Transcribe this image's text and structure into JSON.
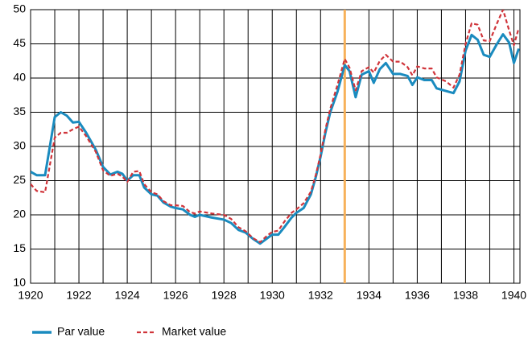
{
  "chart_data": {
    "type": "line",
    "x": [
      1920,
      1920.25,
      1920.6,
      1921,
      1921.25,
      1921.5,
      1921.75,
      1922,
      1922.3,
      1922.7,
      1923,
      1923.3,
      1923.6,
      1923.8,
      1924,
      1924.25,
      1924.5,
      1924.7,
      1925,
      1925.25,
      1925.5,
      1925.8,
      1926,
      1926.3,
      1926.6,
      1926.8,
      1927,
      1927.5,
      1928,
      1928.3,
      1928.6,
      1928.9,
      1929.2,
      1929.5,
      1929.8,
      1930,
      1930.25,
      1930.5,
      1930.8,
      1931,
      1931.3,
      1931.6,
      1931.8,
      1932,
      1932.2,
      1932.4,
      1932.7,
      1933,
      1933.2,
      1933.45,
      1933.7,
      1934,
      1934.2,
      1934.45,
      1934.7,
      1935,
      1935.3,
      1935.6,
      1935.8,
      1936,
      1936.3,
      1936.6,
      1936.8,
      1937.2,
      1937.5,
      1937.75,
      1938,
      1938.25,
      1938.5,
      1938.75,
      1939,
      1939.3,
      1939.55,
      1939.8,
      1940,
      1940.2
    ],
    "series": [
      {
        "name": "Par value",
        "color": "#1a8bbf",
        "dashed": false,
        "values": [
          26.3,
          25.8,
          25.8,
          34.3,
          35,
          34.5,
          33.5,
          33.6,
          32,
          29.5,
          27,
          25.9,
          26.3,
          26,
          25,
          25.8,
          25.8,
          24,
          23,
          22.8,
          21.8,
          21.2,
          21,
          20.8,
          20,
          19.7,
          20,
          19.6,
          19.3,
          18.8,
          17.8,
          17.4,
          16.5,
          15.8,
          16.6,
          17.1,
          17.1,
          18.2,
          19.6,
          20.3,
          21,
          23,
          25.5,
          28.5,
          32,
          35,
          38,
          41.9,
          41,
          37.2,
          40.5,
          41,
          39.3,
          41.3,
          42.2,
          40.6,
          40.6,
          40.3,
          39,
          40.1,
          39.7,
          39.7,
          38.5,
          38.1,
          37.8,
          39.5,
          44,
          46.3,
          45.6,
          43.4,
          43.1,
          45,
          46.4,
          45.2,
          42.2,
          44.3
        ]
      },
      {
        "name": "Market value",
        "color": "#d0343a",
        "dashed": true,
        "values": [
          24.5,
          23.5,
          23.3,
          31.3,
          32,
          32,
          32.5,
          32.9,
          31.5,
          29.2,
          26.5,
          25.7,
          26,
          25.6,
          24.8,
          26.3,
          26.4,
          24.5,
          23.3,
          23,
          22,
          21.4,
          21.4,
          21.3,
          20.4,
          20.2,
          20.5,
          20.2,
          20,
          19.4,
          18.2,
          17.6,
          16.6,
          16,
          17,
          17.5,
          17.7,
          19,
          20.3,
          20.8,
          21.7,
          23.4,
          25.8,
          28.8,
          32.5,
          35.5,
          39,
          42.8,
          41.5,
          38.2,
          41,
          41.6,
          40.8,
          42.5,
          43.4,
          42.4,
          42.4,
          41.6,
          40.4,
          41.7,
          41.4,
          41.4,
          40.1,
          39.5,
          38.6,
          40.5,
          45,
          48,
          47.8,
          45.5,
          45.4,
          48,
          50,
          47,
          44.8,
          47.3
        ]
      }
    ],
    "xlim": [
      1920,
      1940.25
    ],
    "xticks": [
      1920,
      1922,
      1924,
      1926,
      1928,
      1930,
      1932,
      1934,
      1936,
      1938,
      1940
    ],
    "minor_xticks": [
      1921,
      1923,
      1925,
      1927,
      1929,
      1931,
      1933,
      1935,
      1937,
      1939
    ],
    "ylim": [
      10,
      50
    ],
    "yticks": [
      10,
      15,
      20,
      25,
      30,
      35,
      40,
      45,
      50
    ],
    "grid": true,
    "vline": {
      "x": 1933,
      "color": "#f7b15a"
    },
    "legend": "bottom"
  }
}
